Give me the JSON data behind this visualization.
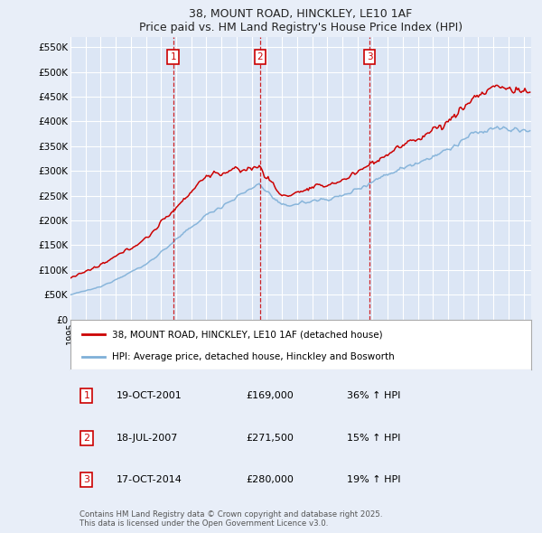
{
  "title": "38, MOUNT ROAD, HINCKLEY, LE10 1AF",
  "subtitle": "Price paid vs. HM Land Registry's House Price Index (HPI)",
  "bg_color": "#e8eef8",
  "plot_bg_color": "#dce6f5",
  "grid_color": "#ffffff",
  "red_line_label": "38, MOUNT ROAD, HINCKLEY, LE10 1AF (detached house)",
  "blue_line_label": "HPI: Average price, detached house, Hinckley and Bosworth",
  "transactions": [
    {
      "num": 1,
      "date": "19-OCT-2001",
      "price": 169000,
      "hpi_change": "36% ↑ HPI",
      "year": 2001.8
    },
    {
      "num": 2,
      "date": "18-JUL-2007",
      "price": 271500,
      "hpi_change": "15% ↑ HPI",
      "year": 2007.55
    },
    {
      "num": 3,
      "date": "17-OCT-2014",
      "price": 280000,
      "hpi_change": "19% ↑ HPI",
      "year": 2014.8
    }
  ],
  "ylabel_ticks": [
    0,
    50000,
    100000,
    150000,
    200000,
    250000,
    300000,
    350000,
    400000,
    450000,
    500000,
    550000
  ],
  "ylabel_labels": [
    "£0",
    "£50K",
    "£100K",
    "£150K",
    "£200K",
    "£250K",
    "£300K",
    "£350K",
    "£400K",
    "£450K",
    "£500K",
    "£550K"
  ],
  "copyright_text": "Contains HM Land Registry data © Crown copyright and database right 2025.\nThis data is licensed under the Open Government Licence v3.0.",
  "red_color": "#cc0000",
  "blue_color": "#7fb0d8",
  "xlim": [
    1995,
    2025.5
  ],
  "ylim": [
    0,
    570000
  ]
}
